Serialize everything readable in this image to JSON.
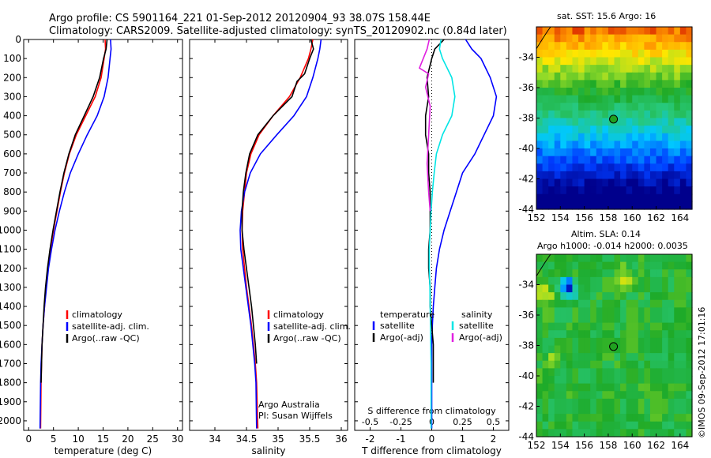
{
  "title": {
    "line1": "Argo profile: CS 5901164_221 01-Sep-2012 20120904_93 38.07S 158.44E",
    "line2": "Climatology: CARS2009. Satellite-adjusted climatology: synTS_20120902.nc (0.84d later)"
  },
  "colors": {
    "climatology": "#ff0000",
    "satellite": "#0000ff",
    "argo": "#000000",
    "salinity_satellite": "#00e5e5",
    "salinity_argo": "#e020e0"
  },
  "depth_axis": {
    "range": [
      0,
      2050
    ],
    "ticks": [
      "0",
      "100",
      "200",
      "300",
      "400",
      "500",
      "600",
      "700",
      "800",
      "900",
      "1000",
      "1100",
      "1200",
      "1300",
      "1400",
      "1500",
      "1600",
      "1700",
      "1800",
      "1900",
      "2000"
    ]
  },
  "chart_data": [
    {
      "type": "line",
      "name": "temperature-profile",
      "xlabel": "temperature (deg C)",
      "xlim": [
        -1,
        31
      ],
      "x_ticks": [
        "0",
        "5",
        "10",
        "15",
        "20",
        "25",
        "30"
      ],
      "ylim": [
        0,
        2050
      ],
      "legend": {
        "placement": "lower-center",
        "entries": [
          "climatology",
          "satellite-adj. clim.",
          "Argo(..raw -QC)"
        ]
      },
      "series": [
        {
          "key": "climatology",
          "color": "#ff0000",
          "x": [
            15.4,
            15.5,
            15.2,
            14.6,
            13.4,
            11.5,
            9.6,
            8.2,
            7.2,
            6.4,
            5.7,
            5.0,
            4.4,
            3.9,
            3.5,
            3.2,
            2.9,
            2.7,
            2.6,
            2.5,
            2.4
          ],
          "y": [
            0,
            50,
            100,
            200,
            300,
            400,
            500,
            600,
            700,
            800,
            900,
            1000,
            1100,
            1200,
            1300,
            1400,
            1500,
            1600,
            1700,
            1800,
            2040
          ]
        },
        {
          "key": "satellite",
          "color": "#0000ff",
          "x": [
            16.5,
            16.6,
            16.4,
            16.0,
            15.2,
            13.8,
            11.8,
            10.0,
            8.4,
            7.2,
            6.2,
            5.3,
            4.6,
            4.0,
            3.6,
            3.2,
            2.9,
            2.7,
            2.5,
            2.4,
            2.3
          ],
          "y": [
            0,
            50,
            100,
            200,
            300,
            400,
            500,
            600,
            700,
            800,
            900,
            1000,
            1100,
            1200,
            1300,
            1400,
            1500,
            1600,
            1700,
            1800,
            2040
          ]
        },
        {
          "key": "argo",
          "color": "#000000",
          "x": [
            15.8,
            15.6,
            15.1,
            14.3,
            13.0,
            11.2,
            9.4,
            8.1,
            7.1,
            6.3,
            5.6,
            4.9,
            4.3,
            3.8,
            3.4,
            3.1,
            2.9,
            2.7,
            2.6,
            2.5
          ],
          "y": [
            0,
            50,
            100,
            200,
            300,
            400,
            500,
            600,
            700,
            800,
            900,
            1000,
            1100,
            1200,
            1300,
            1400,
            1500,
            1600,
            1700,
            1800
          ]
        }
      ]
    },
    {
      "type": "line",
      "name": "salinity-profile",
      "xlabel": "salinity",
      "xlim": [
        33.6,
        36.1
      ],
      "x_ticks": [
        "34",
        "34.5",
        "35",
        "35.5",
        "36"
      ],
      "ylim": [
        0,
        2050
      ],
      "legend": {
        "placement": "lower-center",
        "entries": [
          "climatology",
          "satellite-adj. clim.",
          "Argo(..raw -QC)"
        ]
      },
      "annotation": [
        "Argo Australia",
        "PI: Susan Wijffels"
      ],
      "series": [
        {
          "key": "climatology",
          "color": "#ff0000",
          "x": [
            35.55,
            35.52,
            35.48,
            35.35,
            35.18,
            34.92,
            34.7,
            34.57,
            34.5,
            34.47,
            34.44,
            34.43,
            34.44,
            34.47,
            34.5,
            34.54,
            34.58,
            34.61,
            34.64,
            34.66,
            34.68
          ],
          "y": [
            0,
            50,
            100,
            200,
            300,
            400,
            500,
            600,
            700,
            800,
            900,
            1000,
            1100,
            1200,
            1300,
            1400,
            1500,
            1600,
            1700,
            1800,
            2040
          ]
        },
        {
          "key": "satellite",
          "color": "#0000ff",
          "x": [
            35.68,
            35.66,
            35.63,
            35.55,
            35.45,
            35.25,
            34.98,
            34.72,
            34.56,
            34.47,
            34.42,
            34.4,
            34.41,
            34.45,
            34.49,
            34.53,
            34.57,
            34.6,
            34.63,
            34.65,
            34.66
          ],
          "y": [
            0,
            50,
            100,
            200,
            300,
            400,
            500,
            600,
            700,
            800,
            900,
            1000,
            1100,
            1200,
            1300,
            1400,
            1500,
            1600,
            1700,
            1800,
            2040
          ]
        },
        {
          "key": "argo",
          "color": "#000000",
          "x": [
            35.52,
            35.56,
            35.5,
            35.42,
            35.3,
            35.22,
            34.92,
            34.68,
            34.55,
            34.49,
            34.45,
            34.43,
            34.43,
            34.46,
            34.5,
            34.54,
            34.58,
            34.61,
            34.64,
            34.66
          ],
          "y": [
            0,
            50,
            100,
            180,
            220,
            300,
            400,
            500,
            600,
            700,
            800,
            900,
            1000,
            1100,
            1200,
            1300,
            1400,
            1500,
            1600,
            1700
          ]
        }
      ]
    },
    {
      "type": "line",
      "name": "difference-profile",
      "xlabel": "T difference from climatology",
      "xlabel_top": "S difference from climatology",
      "xlim": [
        -2.5,
        2.5
      ],
      "x_ticks": [
        "-2",
        "-1",
        "0",
        "1",
        "2"
      ],
      "top_ticks": {
        "values": [
          -0.5,
          -0.25,
          0,
          0.25,
          0.5
        ],
        "labels": [
          "-0.5",
          "-0.25",
          "0",
          "0.25",
          "0.5"
        ]
      },
      "ylim": [
        0,
        2050
      ],
      "legend": {
        "placement": "lower-center",
        "temperature_title": "temperature",
        "salinity_title": "salinity",
        "entries": [
          "satellite",
          "Argo(-adj)",
          "satellite",
          "Argo(-adj)"
        ]
      },
      "series": [
        {
          "key": "t_satellite",
          "color": "#0000ff",
          "x": [
            1.1,
            1.3,
            1.6,
            1.9,
            2.1,
            2.0,
            1.7,
            1.4,
            1.0,
            0.8,
            0.6,
            0.4,
            0.25,
            0.15,
            0.1,
            0.05,
            0.02,
            0,
            0,
            0,
            0
          ],
          "y": [
            0,
            50,
            100,
            200,
            300,
            400,
            500,
            600,
            700,
            800,
            900,
            1000,
            1100,
            1200,
            1300,
            1400,
            1500,
            1600,
            1700,
            1800,
            2040
          ]
        },
        {
          "key": "t_argo",
          "color": "#000000",
          "x": [
            0.4,
            0.1,
            0,
            -0.15,
            -0.1,
            -0.2,
            -0.2,
            -0.1,
            -0.1,
            -0.05,
            -0.05,
            -0.05,
            -0.1,
            -0.1,
            -0.05,
            -0.05,
            0,
            0.05,
            0.05,
            0.05
          ],
          "y": [
            0,
            50,
            100,
            200,
            300,
            400,
            500,
            600,
            700,
            800,
            900,
            1000,
            1100,
            1200,
            1300,
            1400,
            1500,
            1600,
            1700,
            1800
          ]
        },
        {
          "key": "s_satellite",
          "color": "#00e5e5",
          "x": [
            0.3,
            0.25,
            0.35,
            0.65,
            0.75,
            0.65,
            0.35,
            0.15,
            0.08,
            0.02,
            -0.02,
            -0.05,
            -0.08,
            -0.08,
            -0.06,
            -0.05,
            -0.04,
            -0.03,
            -0.02,
            -0.02,
            -0.02
          ],
          "y": [
            0,
            50,
            100,
            200,
            300,
            400,
            500,
            600,
            700,
            800,
            900,
            1000,
            1100,
            1200,
            1300,
            1400,
            1500,
            1600,
            1700,
            1800,
            2040
          ]
        },
        {
          "key": "s_argo",
          "color": "#e020e0",
          "x": [
            -0.08,
            -0.15,
            -0.4,
            -0.1,
            -0.2,
            -0.05,
            -0.1,
            -0.15,
            -0.1,
            -0.05
          ],
          "y": [
            0,
            50,
            150,
            180,
            250,
            350,
            500,
            650,
            800,
            900
          ]
        }
      ]
    },
    {
      "type": "heatmap",
      "name": "sst-map",
      "title": "sat. SST: 15.6  Argo: 16",
      "xlim": [
        152,
        165
      ],
      "ylim": [
        -44,
        -32
      ],
      "x_ticks": [
        "152",
        "154",
        "156",
        "158",
        "160",
        "162",
        "164"
      ],
      "y_ticks": [
        "-34",
        "-36",
        "-38",
        "-40",
        "-42",
        "-44"
      ],
      "marker": {
        "lon": 158.44,
        "lat": -38.07
      }
    },
    {
      "type": "heatmap",
      "name": "sla-map",
      "title_line1": "Altim. SLA: 0.14",
      "title_line2": "Argo h1000: -0.014 h2000: 0.0035",
      "xlim": [
        152,
        165
      ],
      "ylim": [
        -44,
        -32
      ],
      "x_ticks": [
        "152",
        "154",
        "156",
        "158",
        "160",
        "162",
        "164"
      ],
      "y_ticks": [
        "-34",
        "-36",
        "-38",
        "-40",
        "-42",
        "-44"
      ],
      "marker": {
        "lon": 158.44,
        "lat": -38.07
      }
    }
  ],
  "footer_vertical": "©IMOS 09-Sep-2012 17:01:16"
}
